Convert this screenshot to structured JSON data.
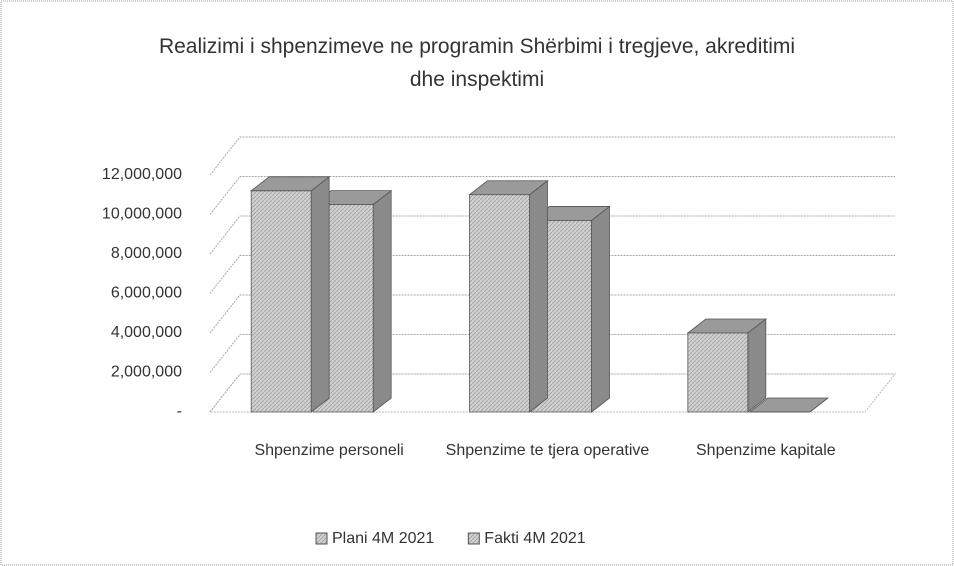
{
  "chart_data": {
    "type": "bar3d",
    "title": "Realizimi i shpenzimeve ne programin Shërbimi i tregjeve, akreditimi dhe inspektimi",
    "categories": [
      "Shpenzime personeli",
      "Shpenzime te tjera operative",
      "Shpenzime kapitale"
    ],
    "series": [
      {
        "name": "Plani 4M 2021",
        "color": "#c4c4c4",
        "values": [
          11200000,
          11000000,
          4000000
        ]
      },
      {
        "name": "Fakti 4M 2021",
        "color": "#b8b8b8",
        "values": [
          10500000,
          9700000,
          0
        ]
      }
    ],
    "ylim": [
      0,
      12000000
    ],
    "yticks": [
      {
        "value": 0,
        "label": "-"
      },
      {
        "value": 2000000,
        "label": "2,000,000"
      },
      {
        "value": 4000000,
        "label": "4,000,000"
      },
      {
        "value": 6000000,
        "label": "6,000,000"
      },
      {
        "value": 8000000,
        "label": "8,000,000"
      },
      {
        "value": 10000000,
        "label": "10,000,000"
      },
      {
        "value": 12000000,
        "label": "12,000,000"
      }
    ],
    "grid": true,
    "legend": "bottom"
  }
}
